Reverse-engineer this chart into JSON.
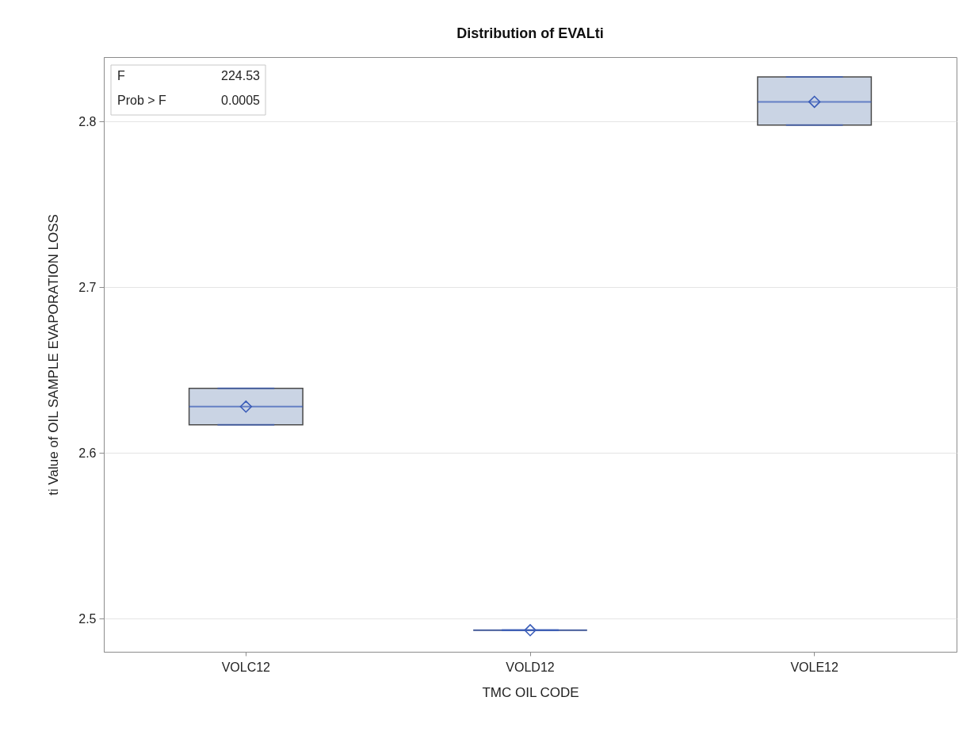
{
  "chart_data": {
    "type": "box",
    "title": "Distribution of EVALti",
    "xlabel": "TMC OIL CODE",
    "ylabel": "ti Value of OIL SAMPLE EVAPORATION LOSS",
    "categories": [
      "VOLC12",
      "VOLD12",
      "VOLE12"
    ],
    "boxes": [
      {
        "low": 2.617,
        "q1": 2.617,
        "median": 2.628,
        "q3": 2.639,
        "high": 2.639,
        "mean": 2.628
      },
      {
        "low": 2.493,
        "q1": 2.493,
        "median": 2.493,
        "q3": 2.493,
        "high": 2.493,
        "mean": 2.493
      },
      {
        "low": 2.798,
        "q1": 2.798,
        "median": 2.812,
        "q3": 2.827,
        "high": 2.827,
        "mean": 2.812
      }
    ],
    "colors": [
      "#cad4e4",
      "#3a5cb8",
      "#cad4e4"
    ],
    "ylim": [
      2.48,
      2.839
    ],
    "yticks": [
      2.5,
      2.6,
      2.7,
      2.8
    ],
    "grid": "y",
    "marker": "diamond",
    "annotations": [
      "F",
      "224.53",
      "Prob > F",
      "0.0005"
    ]
  }
}
